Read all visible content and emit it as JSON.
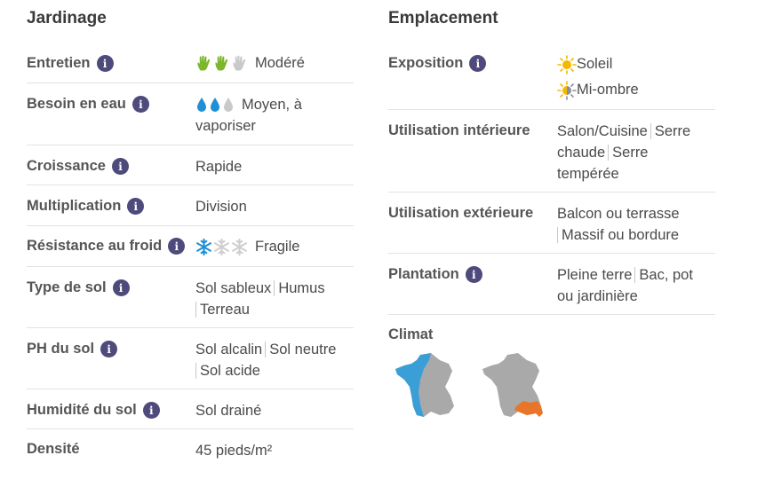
{
  "jardinage": {
    "title": "Jardinage",
    "rows": [
      {
        "label": "Entretien",
        "value": "Modéré"
      },
      {
        "label": "Besoin en eau",
        "value_line1": "Moyen, à",
        "value_line2": "vaporiser"
      },
      {
        "label": "Croissance",
        "value": "Rapide"
      },
      {
        "label": "Multiplication",
        "value": "Division"
      },
      {
        "label": "Résistance au froid",
        "value": "Fragile"
      },
      {
        "label": "Type de sol",
        "items": [
          "Sol sableux",
          "Humus",
          "Terreau"
        ]
      },
      {
        "label": "PH du sol",
        "items": [
          "Sol alcalin",
          "Sol neutre",
          "Sol acide"
        ]
      },
      {
        "label": "Humidité du sol",
        "value": "Sol drainé"
      },
      {
        "label": "Densité",
        "value": "45 pieds/m²"
      }
    ],
    "entretien_level": 2,
    "entretien_max": 3,
    "eau_level": 2,
    "eau_max": 3,
    "froid_level": 1,
    "froid_max": 3
  },
  "emplacement": {
    "title": "Emplacement",
    "rows": [
      {
        "label": "Exposition",
        "items": [
          "Soleil",
          "Mi-ombre"
        ]
      },
      {
        "label": "Utilisation intérieure",
        "items": [
          "Salon/Cuisine",
          "Serre",
          "chaude",
          "Serre",
          "tempérée"
        ]
      },
      {
        "label": "Utilisation extérieure",
        "items": [
          "Balcon ou terrasse",
          "Massif ou bordure"
        ]
      },
      {
        "label": "Plantation",
        "items": [
          "Pleine terre",
          "Bac, pot",
          "ou jardinière"
        ]
      }
    ],
    "climat_label": "Climat",
    "climat_maps": [
      {
        "name": "climat-ouest",
        "highlight": "west",
        "color": "#3a9fd6"
      },
      {
        "name": "climat-mediterraneen",
        "highlight": "south",
        "color": "#e8752a"
      }
    ]
  },
  "colors": {
    "info_bg": "#4f4a7c",
    "hand_active": "#7bb62b",
    "hand_inactive": "#c9c9c9",
    "drop_active": "#1f8fd6",
    "drop_inactive": "#c9c9c9",
    "flake_active": "#1f8fd6",
    "flake_inactive": "#cfcfcf",
    "sun": "#f5b800",
    "map_base": "#a9a9a9"
  }
}
